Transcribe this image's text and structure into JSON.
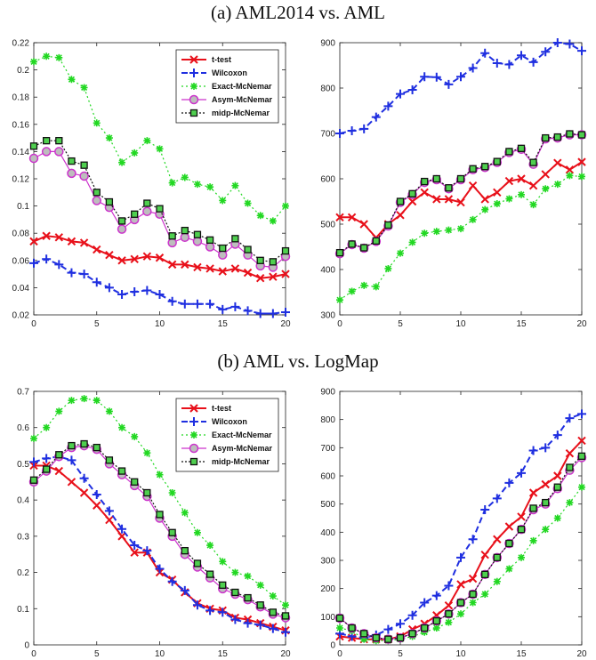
{
  "headings": [
    "(a) AML2014 vs. AML",
    "(b) AML vs. LogMap"
  ],
  "series_names": [
    "t-test",
    "Wilcoxon",
    "Exact-McNemar",
    "Asym-McNemar",
    "midp-McNemar"
  ],
  "series_colors": [
    "#e8101a",
    "#1f2fe0",
    "#22d822",
    "#cc33cc",
    "#111111"
  ],
  "chart_data": [
    {
      "type": "line",
      "title": "(a) AML2014 vs. AML",
      "x": [
        0,
        1,
        2,
        3,
        4,
        5,
        6,
        7,
        8,
        9,
        10,
        11,
        12,
        13,
        14,
        15,
        16,
        17,
        18,
        19,
        20
      ],
      "xlim": [
        0,
        20
      ],
      "ylim": [
        0.02,
        0.22
      ],
      "xticks": [
        "0",
        "5",
        "10",
        "15",
        "20"
      ],
      "yticks": [
        "0.02",
        "0.04",
        "0.06",
        "0.08",
        "0.1",
        "0.12",
        "0.14",
        "0.16",
        "0.18",
        "0.2",
        "0.22"
      ],
      "legend": "top-right",
      "series": [
        {
          "name": "t-test",
          "values": [
            0.074,
            0.078,
            0.077,
            0.074,
            0.073,
            0.068,
            0.064,
            0.06,
            0.061,
            0.063,
            0.062,
            0.057,
            0.057,
            0.055,
            0.054,
            0.052,
            0.054,
            0.051,
            0.047,
            0.048,
            0.05
          ]
        },
        {
          "name": "Wilcoxon",
          "values": [
            0.058,
            0.061,
            0.057,
            0.051,
            0.05,
            0.044,
            0.04,
            0.035,
            0.037,
            0.038,
            0.035,
            0.03,
            0.028,
            0.028,
            0.028,
            0.024,
            0.026,
            0.023,
            0.021,
            0.021,
            0.022
          ]
        },
        {
          "name": "Exact-McNemar",
          "values": [
            0.206,
            0.21,
            0.209,
            0.193,
            0.187,
            0.161,
            0.15,
            0.132,
            0.139,
            0.148,
            0.142,
            0.117,
            0.121,
            0.116,
            0.114,
            0.104,
            0.115,
            0.102,
            0.093,
            0.089,
            0.1
          ]
        },
        {
          "name": "Asym-McNemar",
          "values": [
            0.135,
            0.14,
            0.14,
            0.124,
            0.122,
            0.104,
            0.099,
            0.083,
            0.09,
            0.096,
            0.094,
            0.073,
            0.077,
            0.074,
            0.07,
            0.064,
            0.072,
            0.064,
            0.056,
            0.055,
            0.063
          ]
        },
        {
          "name": "midp-McNemar",
          "values": [
            0.144,
            0.148,
            0.148,
            0.133,
            0.13,
            0.11,
            0.103,
            0.089,
            0.094,
            0.102,
            0.098,
            0.078,
            0.082,
            0.079,
            0.075,
            0.069,
            0.076,
            0.068,
            0.06,
            0.059,
            0.067
          ]
        }
      ]
    },
    {
      "type": "line",
      "title": "",
      "x": [
        0,
        1,
        2,
        3,
        4,
        5,
        6,
        7,
        8,
        9,
        10,
        11,
        12,
        13,
        14,
        15,
        16,
        17,
        18,
        19,
        20
      ],
      "xlim": [
        0,
        20
      ],
      "ylim": [
        300,
        900
      ],
      "xticks": [
        "0",
        "5",
        "10",
        "15",
        "20"
      ],
      "yticks": [
        "300",
        "400",
        "500",
        "600",
        "700",
        "800",
        "900"
      ],
      "legend": "none",
      "series": [
        {
          "name": "t-test",
          "values": [
            515,
            515,
            500,
            470,
            500,
            520,
            550,
            570,
            555,
            555,
            548,
            585,
            555,
            570,
            595,
            600,
            585,
            610,
            635,
            620,
            637
          ]
        },
        {
          "name": "Wilcoxon",
          "values": [
            700,
            706,
            710,
            736,
            760,
            787,
            796,
            825,
            824,
            808,
            825,
            844,
            877,
            855,
            852,
            872,
            857,
            880,
            900,
            897,
            882
          ]
        },
        {
          "name": "Exact-McNemar",
          "values": [
            333,
            352,
            365,
            362,
            402,
            436,
            460,
            480,
            484,
            487,
            490,
            510,
            532,
            545,
            556,
            565,
            543,
            578,
            588,
            607,
            605
          ]
        },
        {
          "name": "Asym-McNemar",
          "values": [
            435,
            455,
            447,
            462,
            496,
            548,
            565,
            592,
            598,
            578,
            598,
            620,
            625,
            636,
            658,
            665,
            632,
            688,
            690,
            697,
            697
          ]
        },
        {
          "name": "midp-McNemar",
          "values": [
            437,
            456,
            448,
            463,
            498,
            550,
            567,
            594,
            600,
            580,
            600,
            622,
            627,
            638,
            660,
            667,
            636,
            690,
            692,
            699,
            697
          ]
        }
      ]
    },
    {
      "type": "line",
      "title": "(b) AML vs. LogMap",
      "x": [
        0,
        1,
        2,
        3,
        4,
        5,
        6,
        7,
        8,
        9,
        10,
        11,
        12,
        13,
        14,
        15,
        16,
        17,
        18,
        19,
        20
      ],
      "xlim": [
        0,
        20
      ],
      "ylim": [
        0,
        0.7
      ],
      "xticks": [
        "0",
        "5",
        "10",
        "15",
        "20"
      ],
      "yticks": [
        "0",
        "0.1",
        "0.2",
        "0.3",
        "0.4",
        "0.5",
        "0.6",
        "0.7"
      ],
      "legend": "top-right",
      "series": [
        {
          "name": "t-test",
          "values": [
            0.495,
            0.495,
            0.48,
            0.45,
            0.42,
            0.385,
            0.345,
            0.3,
            0.255,
            0.255,
            0.2,
            0.18,
            0.145,
            0.115,
            0.1,
            0.095,
            0.075,
            0.07,
            0.06,
            0.05,
            0.04
          ]
        },
        {
          "name": "Wilcoxon",
          "values": [
            0.505,
            0.515,
            0.52,
            0.51,
            0.46,
            0.415,
            0.37,
            0.32,
            0.275,
            0.26,
            0.21,
            0.175,
            0.15,
            0.11,
            0.095,
            0.09,
            0.07,
            0.06,
            0.055,
            0.045,
            0.035
          ]
        },
        {
          "name": "Exact-McNemar",
          "values": [
            0.57,
            0.6,
            0.645,
            0.675,
            0.68,
            0.675,
            0.645,
            0.6,
            0.575,
            0.53,
            0.47,
            0.42,
            0.365,
            0.31,
            0.275,
            0.23,
            0.2,
            0.19,
            0.165,
            0.135,
            0.11
          ]
        },
        {
          "name": "Asym-McNemar",
          "values": [
            0.45,
            0.48,
            0.52,
            0.545,
            0.55,
            0.54,
            0.5,
            0.47,
            0.44,
            0.41,
            0.35,
            0.3,
            0.25,
            0.215,
            0.185,
            0.155,
            0.14,
            0.125,
            0.105,
            0.085,
            0.075
          ]
        },
        {
          "name": "midp-McNemar",
          "values": [
            0.455,
            0.485,
            0.525,
            0.55,
            0.555,
            0.545,
            0.51,
            0.48,
            0.45,
            0.42,
            0.36,
            0.31,
            0.26,
            0.225,
            0.195,
            0.165,
            0.145,
            0.13,
            0.11,
            0.09,
            0.08
          ]
        }
      ]
    },
    {
      "type": "line",
      "title": "",
      "x": [
        0,
        1,
        2,
        3,
        4,
        5,
        6,
        7,
        8,
        9,
        10,
        11,
        12,
        13,
        14,
        15,
        16,
        17,
        18,
        19,
        20
      ],
      "xlim": [
        0,
        20
      ],
      "ylim": [
        0,
        900
      ],
      "xticks": [
        "0",
        "5",
        "10",
        "15",
        "20"
      ],
      "yticks": [
        "0",
        "100",
        "200",
        "300",
        "400",
        "500",
        "600",
        "700",
        "800",
        "900"
      ],
      "legend": "none",
      "series": [
        {
          "name": "t-test",
          "values": [
            30,
            25,
            20,
            20,
            20,
            30,
            55,
            75,
            105,
            140,
            215,
            235,
            320,
            375,
            420,
            455,
            540,
            570,
            600,
            680,
            725
          ]
        },
        {
          "name": "Wilcoxon",
          "values": [
            40,
            30,
            25,
            35,
            55,
            75,
            105,
            150,
            175,
            210,
            310,
            375,
            480,
            520,
            575,
            610,
            690,
            700,
            745,
            805,
            820
          ]
        },
        {
          "name": "Exact-McNemar",
          "values": [
            60,
            50,
            20,
            15,
            15,
            20,
            30,
            45,
            60,
            80,
            110,
            150,
            180,
            225,
            270,
            310,
            370,
            410,
            450,
            505,
            560
          ]
        },
        {
          "name": "Asym-McNemar",
          "values": [
            95,
            60,
            40,
            25,
            20,
            25,
            40,
            60,
            85,
            110,
            150,
            180,
            250,
            310,
            360,
            410,
            480,
            500,
            555,
            620,
            665
          ]
        },
        {
          "name": "midp-McNemar",
          "values": [
            95,
            60,
            40,
            25,
            20,
            25,
            40,
            60,
            85,
            110,
            150,
            180,
            250,
            310,
            360,
            410,
            485,
            505,
            560,
            630,
            670
          ]
        }
      ]
    }
  ]
}
